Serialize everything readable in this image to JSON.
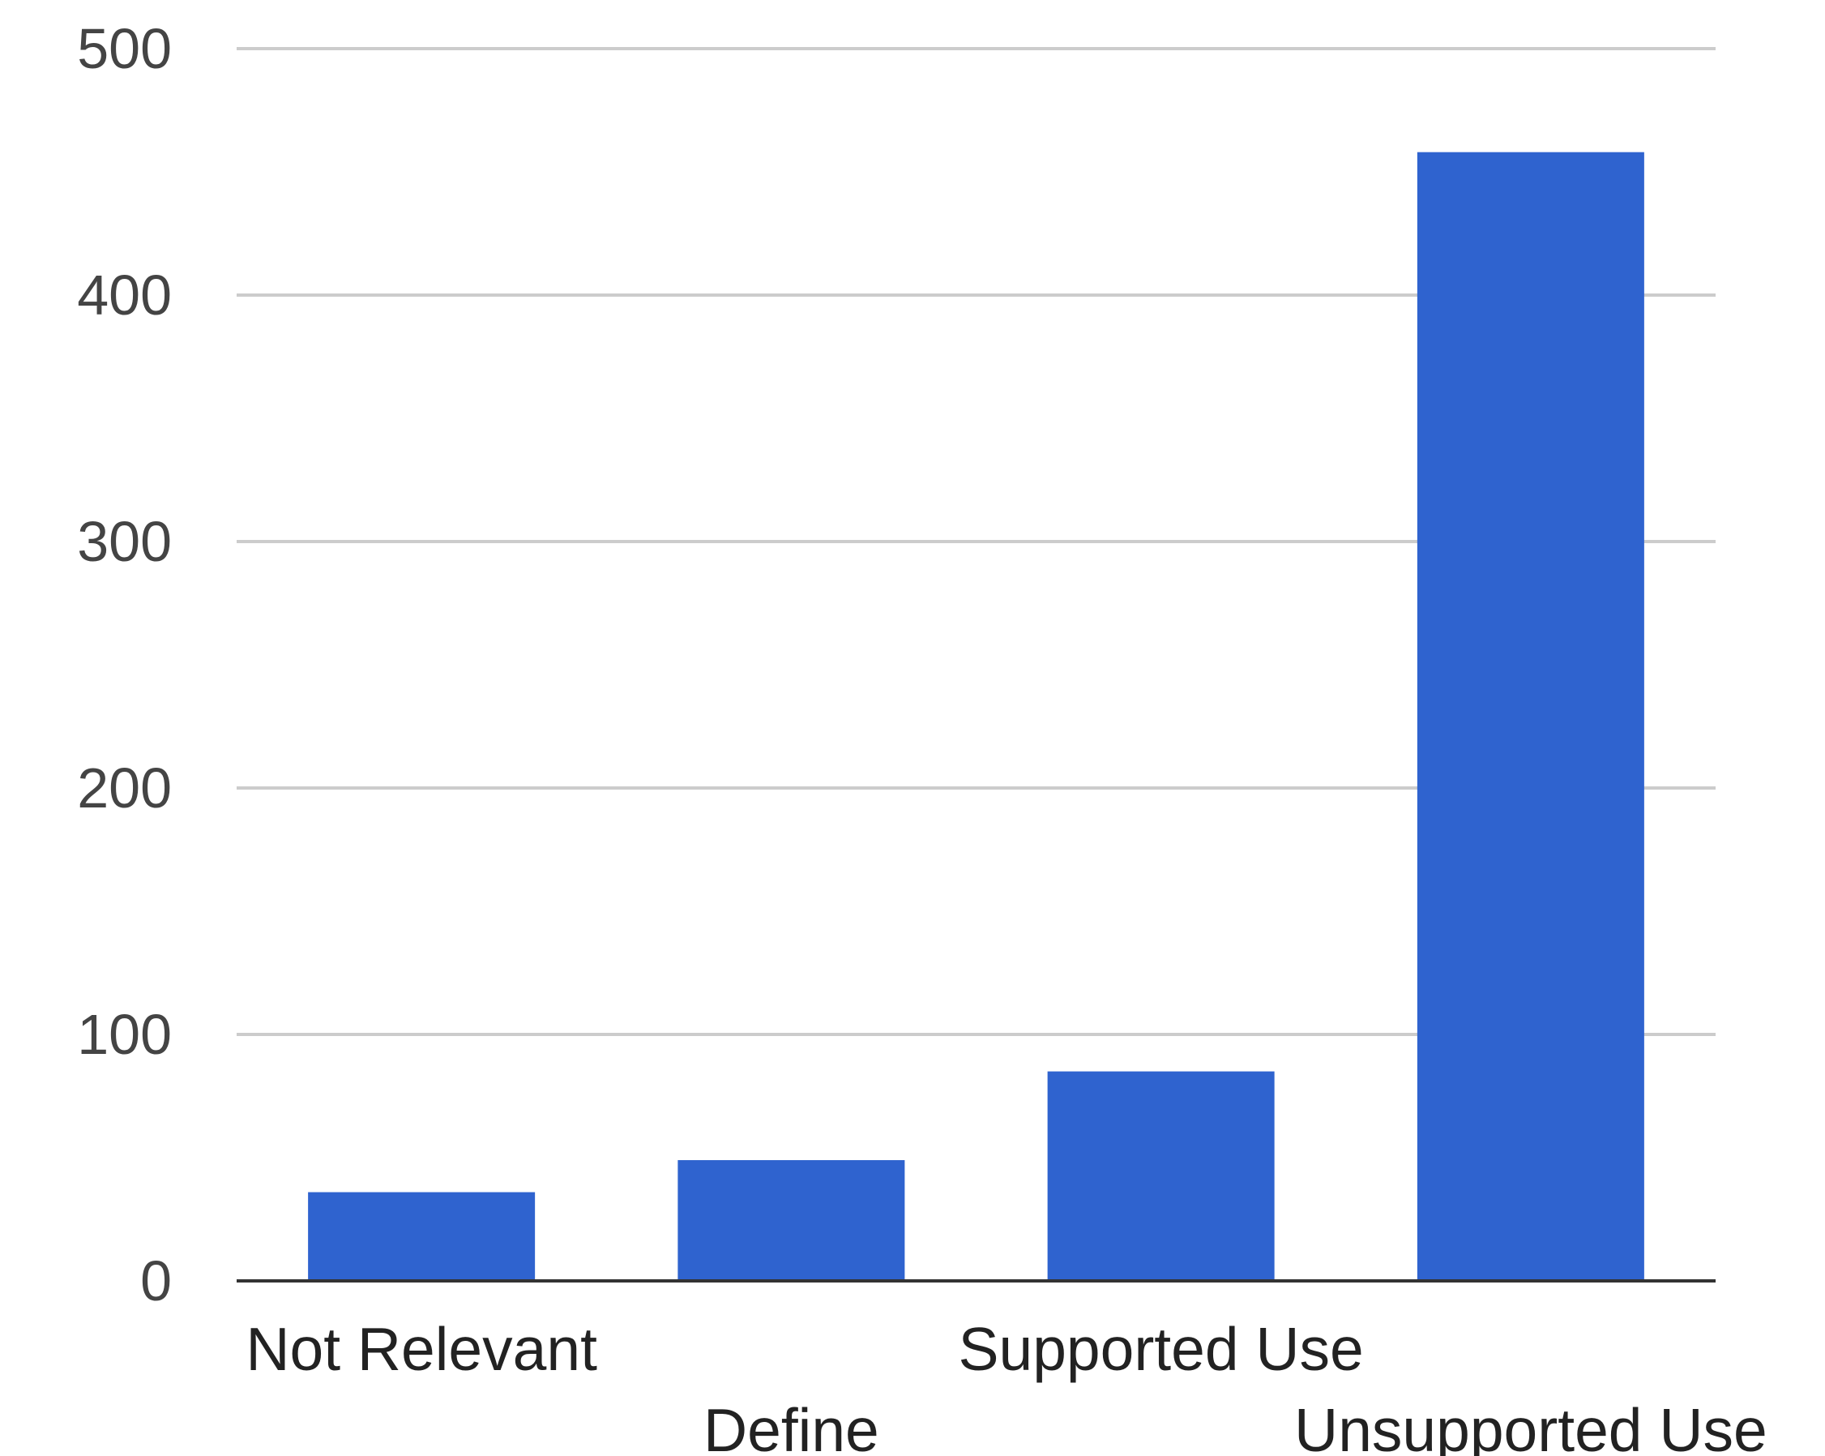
{
  "chart_data": {
    "type": "bar",
    "categories": [
      "Not Relevant",
      "Define",
      "Supported Use",
      "Unsupported Use"
    ],
    "values": [
      36,
      49,
      85,
      458
    ],
    "title": "",
    "xlabel": "",
    "ylabel": "",
    "ylim": [
      0,
      500
    ],
    "yticks": [
      "0",
      "100",
      "200",
      "300",
      "400",
      "500"
    ],
    "grid": true,
    "legend": "none",
    "colors": {
      "bar": "#2f63cf",
      "grid": "#cccccc",
      "baseline": "#333333",
      "tick_text": "#444444",
      "category_text": "#222222"
    }
  }
}
